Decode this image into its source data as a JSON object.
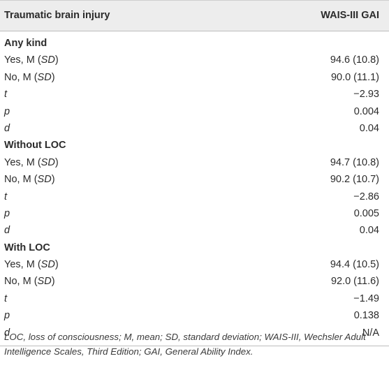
{
  "header": {
    "col1": "Traumatic brain injury",
    "col2": "WAIS-III GAI"
  },
  "sections": [
    {
      "title": "Any kind",
      "rows": [
        {
          "label_main": "Yes, M (",
          "label_it": "SD",
          "label_end": ")",
          "value": "94.6 (10.8)"
        },
        {
          "label_main": "No, M (",
          "label_it": "SD",
          "label_end": ")",
          "value": "90.0 (11.1)"
        },
        {
          "label_it_only": "t",
          "value": "−2.93"
        },
        {
          "label_it_only": "p",
          "value": "0.004"
        },
        {
          "label_it_only": "d",
          "value": "0.04"
        }
      ]
    },
    {
      "title": "Without LOC",
      "rows": [
        {
          "label_main": "Yes, M (",
          "label_it": "SD",
          "label_end": ")",
          "value": "94.7 (10.8)"
        },
        {
          "label_main": "No, M (",
          "label_it": "SD",
          "label_end": ")",
          "value": "90.2 (10.7)"
        },
        {
          "label_it_only": "t",
          "value": "−2.86"
        },
        {
          "label_it_only": "p",
          "value": "0.005"
        },
        {
          "label_it_only": "d",
          "value": "0.04"
        }
      ]
    },
    {
      "title": "With LOC",
      "rows": [
        {
          "label_main": "Yes, M (",
          "label_it": "SD",
          "label_end": ")",
          "value": "94.4 (10.5)"
        },
        {
          "label_main": "No, M (",
          "label_it": "SD",
          "label_end": ")",
          "value": "92.0 (11.6)"
        },
        {
          "label_it_only": "t",
          "value": "−1.49"
        },
        {
          "label_it_only": "p",
          "value": "0.138"
        },
        {
          "label_it_only": "d",
          "value": "N/A"
        }
      ]
    }
  ],
  "footnote": "LOC, loss of consciousness; M, mean; SD, standard deviation; WAIS-III, Wechsler Adult Intelligence Scales, Third Edition; GAI, General Ability Index."
}
